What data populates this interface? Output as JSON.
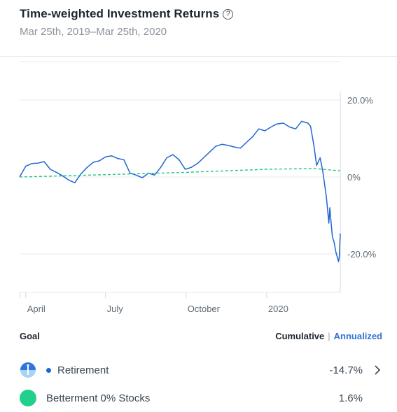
{
  "header": {
    "title": "Time-weighted Investment Returns",
    "help_icon": "?",
    "date_range": "Mar 25th, 2019–Mar 25th, 2020"
  },
  "chart_data": {
    "type": "line",
    "x_tick_labels": [
      "April",
      "July",
      "October",
      "2020"
    ],
    "y_tick_labels": [
      "20.0%",
      "0%",
      "-20.0%"
    ],
    "y_ticks": [
      20,
      0,
      -20
    ],
    "ylim": [
      -30,
      20
    ],
    "grid": true,
    "series": [
      {
        "name": "Retirement",
        "color": "#2166d1",
        "style": "solid",
        "x": [
          "2019-03-25",
          "2019-04-01",
          "2019-04-08",
          "2019-04-15",
          "2019-04-22",
          "2019-04-29",
          "2019-05-06",
          "2019-05-13",
          "2019-05-20",
          "2019-05-27",
          "2019-06-03",
          "2019-06-10",
          "2019-06-17",
          "2019-06-24",
          "2019-07-01",
          "2019-07-08",
          "2019-07-15",
          "2019-07-22",
          "2019-07-29",
          "2019-08-05",
          "2019-08-12",
          "2019-08-19",
          "2019-08-26",
          "2019-09-02",
          "2019-09-09",
          "2019-09-16",
          "2019-09-23",
          "2019-09-30",
          "2019-10-07",
          "2019-10-14",
          "2019-10-21",
          "2019-10-28",
          "2019-11-04",
          "2019-11-11",
          "2019-11-18",
          "2019-11-25",
          "2019-12-02",
          "2019-12-09",
          "2019-12-16",
          "2019-12-23",
          "2019-12-30",
          "2020-01-06",
          "2020-01-13",
          "2020-01-20",
          "2020-01-27",
          "2020-02-03",
          "2020-02-10",
          "2020-02-17",
          "2020-02-20",
          "2020-02-24",
          "2020-02-27",
          "2020-03-02",
          "2020-03-05",
          "2020-03-09",
          "2020-03-12",
          "2020-03-13",
          "2020-03-16",
          "2020-03-18",
          "2020-03-20",
          "2020-03-23",
          "2020-03-24",
          "2020-03-25"
        ],
        "values": [
          0,
          2.8,
          3.5,
          3.6,
          4.0,
          2.0,
          1.2,
          0.3,
          -0.8,
          -1.5,
          0.8,
          2.5,
          3.8,
          4.2,
          5.2,
          5.5,
          4.8,
          4.5,
          1.0,
          0.5,
          -0.2,
          1.0,
          0.5,
          2.5,
          5.0,
          5.8,
          4.5,
          2.0,
          2.5,
          3.5,
          5.0,
          6.5,
          8.0,
          8.5,
          8.2,
          7.8,
          7.5,
          9.0,
          10.5,
          12.5,
          12.0,
          13.0,
          13.8,
          14.0,
          13.0,
          12.5,
          14.5,
          14.0,
          13.2,
          8.0,
          3.0,
          5.0,
          1.5,
          -5.0,
          -12.0,
          -8.0,
          -15.5,
          -17.0,
          -19.5,
          -22.0,
          -20.5,
          -14.7
        ]
      },
      {
        "name": "Betterment 0% Stocks",
        "color": "#21c77f",
        "style": "dashed",
        "x": [
          "2019-03-25",
          "2019-07-01",
          "2019-10-01",
          "2020-01-01",
          "2020-02-24",
          "2020-03-25"
        ],
        "values": [
          0,
          0.6,
          1.2,
          2.0,
          2.2,
          1.6
        ]
      }
    ]
  },
  "legend": {
    "goal_label": "Goal",
    "cumulative_label": "Cumulative",
    "separator": "|",
    "annualized_label": "Annualized",
    "items": [
      {
        "name": "Retirement",
        "value": "-14.7%",
        "icon": "retirement-goal-icon",
        "dot_color": "#1e66d6"
      },
      {
        "name": "Betterment 0% Stocks",
        "value": "1.6%",
        "icon": "green-circle-icon",
        "color": "#21d08c"
      }
    ]
  }
}
